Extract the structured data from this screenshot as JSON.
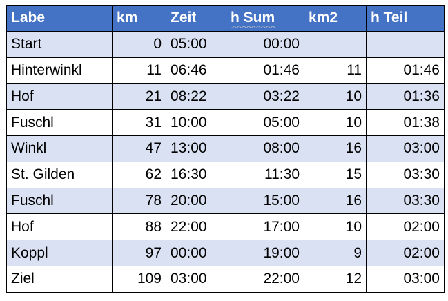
{
  "table": {
    "header": [
      "Labe",
      "km",
      "Zeit",
      "h Sum",
      "km2",
      "h Teil"
    ],
    "rows": [
      [
        "Start",
        0,
        "05:00",
        "00:00"
      ],
      [
        "Hinterwinkl",
        11,
        "06:46",
        "01:46",
        11,
        "01:46"
      ],
      [
        "Hof",
        21,
        "08:22",
        "03:22",
        10,
        "01:36"
      ],
      [
        "Fuschl",
        31,
        "10:00",
        "05:00",
        10,
        "01:38"
      ],
      [
        "Winkl",
        47,
        "13:00",
        "08:00",
        16,
        "03:00"
      ],
      [
        "St. Gilden",
        62,
        "16:30",
        "11:30",
        15,
        "03:30"
      ],
      [
        "Fuschl",
        78,
        "20:00",
        "15:00",
        16,
        "03:30"
      ],
      [
        "Hof",
        88,
        "22:00",
        "17:00",
        10,
        "02:00"
      ],
      [
        "Koppl",
        97,
        "00:00",
        "19:00",
        9,
        "02:00"
      ],
      [
        "Ziel",
        109,
        "03:00",
        "22:00",
        12,
        "03:00"
      ]
    ]
  }
}
